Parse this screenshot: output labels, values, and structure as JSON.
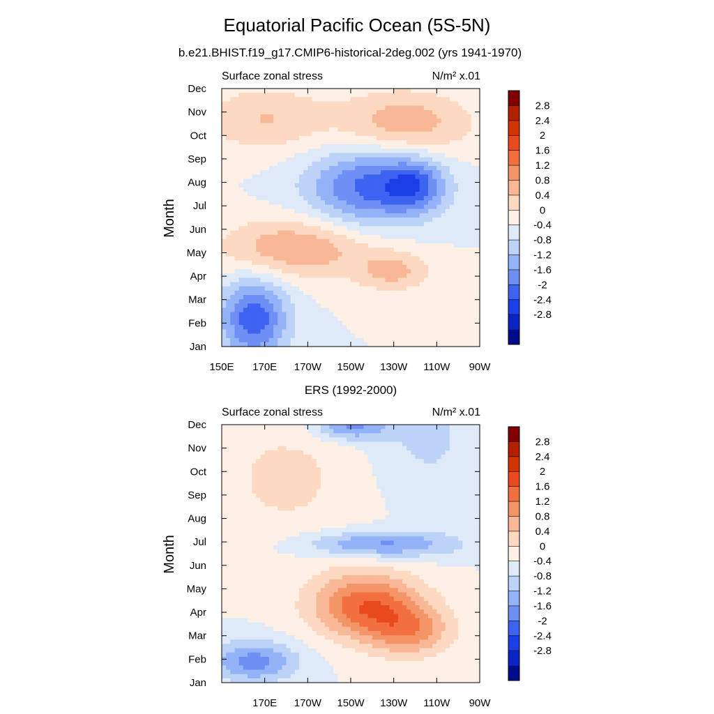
{
  "figure": {
    "title": "Equatorial Pacific Ocean (5S-5N)",
    "subtitle": "b.e21.BHIST.f19_g17.CMIP6-historical-2deg.002 (yrs 1941-1970)"
  },
  "colorbar": {
    "labels": [
      "2.8",
      "2.4",
      "2",
      "1.6",
      "1.2",
      "0.8",
      "0.4",
      "0",
      "-0.4",
      "-0.8",
      "-1.2",
      "-1.6",
      "-2",
      "-2.4",
      "-2.8"
    ],
    "colors": [
      "#7f0000",
      "#b22000",
      "#d23300",
      "#e84a1e",
      "#f2703f",
      "#f49568",
      "#f8b896",
      "#fcd9c0",
      "#fff0e6",
      "#deeaf8",
      "#bcd2f7",
      "#93b2f7",
      "#6f8ff5",
      "#3d63f0",
      "#1a3fe6",
      "#0a24c6",
      "#000b8a"
    ]
  },
  "chart_data": [
    {
      "type": "heatmap",
      "panel_title": "",
      "left_label": "Surface zonal stress",
      "units_label": "N/m² x.01",
      "ylabel": "Month",
      "xlabel": "",
      "x_range": [
        150,
        270
      ],
      "x_ticks": [
        150,
        170,
        190,
        210,
        230,
        250,
        270
      ],
      "x_tick_labels": [
        "150E",
        "170E",
        "170W",
        "150W",
        "130W",
        "110W",
        "90W"
      ],
      "y_tick_labels": [
        "Jan",
        "Feb",
        "Mar",
        "Apr",
        "May",
        "Jun",
        "Jul",
        "Aug",
        "Sep",
        "Oct",
        "Nov",
        "Dec"
      ],
      "contour_levels": [
        -2.8,
        -2.4,
        -2,
        -1.6,
        -1.2,
        -0.8,
        -0.4,
        0,
        0.4,
        0.8,
        1.2,
        1.6,
        2,
        2.4,
        2.8
      ],
      "features": [
        {
          "x": 165,
          "y": 1.2,
          "value": -1.9,
          "sx": 11,
          "sy": 1.2
        },
        {
          "x": 218,
          "y": 6.8,
          "value": -1.7,
          "sx": 20,
          "sy": 1.2
        },
        {
          "x": 240,
          "y": 6.9,
          "value": -1.3,
          "sx": 10,
          "sy": 0.8
        },
        {
          "x": 185,
          "y": 4.2,
          "value": 1.2,
          "sx": 25,
          "sy": 0.9
        },
        {
          "x": 235,
          "y": 9.5,
          "value": 1.1,
          "sx": 22,
          "sy": 1.0
        },
        {
          "x": 170,
          "y": 9.7,
          "value": 0.8,
          "sx": 20,
          "sy": 1.0
        },
        {
          "x": 230,
          "y": 3.2,
          "value": 0.9,
          "sx": 12,
          "sy": 0.6
        }
      ]
    },
    {
      "type": "heatmap",
      "panel_title": "ERS (1992-2000)",
      "left_label": "Surface zonal stress",
      "units_label": "N/m² x.01",
      "ylabel": "Month",
      "xlabel": "",
      "x_range": [
        150,
        270
      ],
      "x_ticks": [
        170,
        190,
        210,
        230,
        250,
        270
      ],
      "x_tick_labels": [
        "170E",
        "170W",
        "150W",
        "130W",
        "110W",
        "90W"
      ],
      "y_tick_labels": [
        "Jan",
        "Feb",
        "Mar",
        "Apr",
        "May",
        "Jun",
        "Jul",
        "Aug",
        "Sep",
        "Oct",
        "Nov",
        "Dec"
      ],
      "contour_levels": [
        -2.8,
        -2.4,
        -2,
        -1.6,
        -1.2,
        -0.8,
        -0.4,
        0,
        0.4,
        0.8,
        1.2,
        1.6,
        2,
        2.4,
        2.8
      ],
      "features": [
        {
          "x": 165,
          "y": 0.9,
          "value": -1.4,
          "sx": 14,
          "sy": 0.6
        },
        {
          "x": 224,
          "y": 5.9,
          "value": -1.3,
          "sx": 25,
          "sy": 0.4
        },
        {
          "x": 210,
          "y": 10.9,
          "value": -1.3,
          "sx": 12,
          "sy": 0.4
        },
        {
          "x": 217,
          "y": 3.3,
          "value": 1.9,
          "sx": 18,
          "sy": 1.0
        },
        {
          "x": 238,
          "y": 2.2,
          "value": 1.2,
          "sx": 14,
          "sy": 0.8
        },
        {
          "x": 180,
          "y": 8.7,
          "value": 0.5,
          "sx": 25,
          "sy": 2.0
        },
        {
          "x": 245,
          "y": 10.5,
          "value": -0.5,
          "sx": 18,
          "sy": 1.8
        }
      ]
    }
  ]
}
